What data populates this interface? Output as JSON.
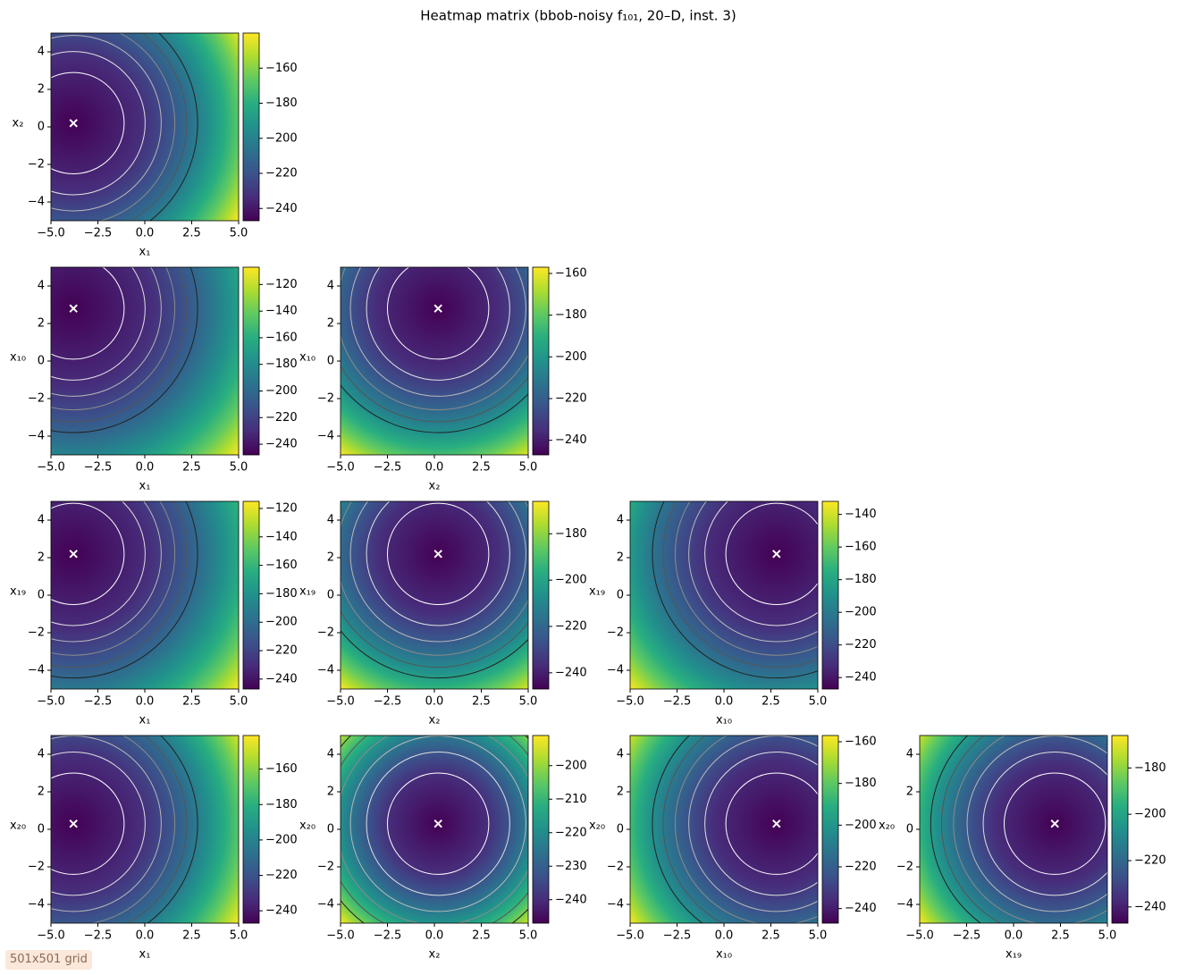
{
  "title": "Heatmap matrix (bbob-noisy f₁₀₁, 20–D, inst. 3)",
  "note": "501x501 grid",
  "chart_data": [
    {
      "type": "heatmap",
      "colormap": "viridis",
      "xlabel": "x₁",
      "ylabel": "x₂",
      "xlim": [
        -5,
        5
      ],
      "ylim": [
        -5,
        5
      ],
      "xticks": [
        {
          "value": -5,
          "label": "−5.0"
        },
        {
          "value": -2.5,
          "label": "−2.5"
        },
        {
          "value": 0,
          "label": "0.0"
        },
        {
          "value": 2.5,
          "label": "2.5"
        },
        {
          "value": 5,
          "label": "5.0"
        }
      ],
      "yticks": [
        {
          "value": -4,
          "label": "−4"
        },
        {
          "value": -2,
          "label": "−2"
        },
        0,
        2,
        4
      ],
      "clim": [
        -247,
        -140
      ],
      "cticks": [
        {
          "value": -240,
          "label": "−240"
        },
        {
          "value": -220,
          "label": "−220"
        },
        {
          "value": -200,
          "label": "−200"
        },
        {
          "value": -180,
          "label": "−180"
        },
        {
          "value": -160,
          "label": "−160"
        }
      ],
      "optimum": [
        -3.8,
        0.2
      ]
    },
    {
      "type": "heatmap",
      "colormap": "viridis",
      "xlabel": "x₁",
      "ylabel": "x₁₀",
      "xlim": [
        -5,
        5
      ],
      "ylim": [
        -5,
        5
      ],
      "xticks": [
        {
          "value": -5,
          "label": "−5.0"
        },
        {
          "value": -2.5,
          "label": "−2.5"
        },
        {
          "value": 0,
          "label": "0.0"
        },
        {
          "value": 2.5,
          "label": "2.5"
        },
        {
          "value": 5,
          "label": "5.0"
        }
      ],
      "yticks": [
        {
          "value": -4,
          "label": "−4"
        },
        {
          "value": -2,
          "label": "−2"
        },
        0,
        2,
        4
      ],
      "clim": [
        -248,
        -107
      ],
      "cticks": [
        {
          "value": -240,
          "label": "−240"
        },
        {
          "value": -220,
          "label": "−220"
        },
        {
          "value": -200,
          "label": "−200"
        },
        {
          "value": -180,
          "label": "−180"
        },
        {
          "value": -160,
          "label": "−160"
        },
        {
          "value": -140,
          "label": "−140"
        },
        {
          "value": -120,
          "label": "−120"
        }
      ],
      "optimum": [
        -3.8,
        2.8
      ]
    },
    {
      "type": "heatmap",
      "colormap": "viridis",
      "xlabel": "x₂",
      "ylabel": "x₁₀",
      "xlim": [
        -5,
        5
      ],
      "ylim": [
        -5,
        5
      ],
      "xticks": [
        {
          "value": -5,
          "label": "−5.0"
        },
        {
          "value": -2.5,
          "label": "−2.5"
        },
        {
          "value": 0,
          "label": "0.0"
        },
        {
          "value": 2.5,
          "label": "2.5"
        },
        {
          "value": 5,
          "label": "5.0"
        }
      ],
      "yticks": [
        {
          "value": -4,
          "label": "−4"
        },
        {
          "value": -2,
          "label": "−2"
        },
        0,
        2,
        4
      ],
      "clim": [
        -247,
        -157
      ],
      "cticks": [
        {
          "value": -240,
          "label": "−240"
        },
        {
          "value": -220,
          "label": "−220"
        },
        {
          "value": -200,
          "label": "−200"
        },
        {
          "value": -180,
          "label": "−180"
        },
        {
          "value": -160,
          "label": "−160"
        }
      ],
      "optimum": [
        0.2,
        2.8
      ]
    },
    {
      "type": "heatmap",
      "colormap": "viridis",
      "xlabel": "x₁",
      "ylabel": "x₁₉",
      "xlim": [
        -5,
        5
      ],
      "ylim": [
        -5,
        5
      ],
      "xticks": [
        {
          "value": -5,
          "label": "−5.0"
        },
        {
          "value": -2.5,
          "label": "−2.5"
        },
        {
          "value": 0,
          "label": "0.0"
        },
        {
          "value": 2.5,
          "label": "2.5"
        },
        {
          "value": 5,
          "label": "5.0"
        }
      ],
      "yticks": [
        {
          "value": -4,
          "label": "−4"
        },
        {
          "value": -2,
          "label": "−2"
        },
        0,
        2,
        4
      ],
      "clim": [
        -247,
        -115
      ],
      "cticks": [
        {
          "value": -240,
          "label": "−240"
        },
        {
          "value": -220,
          "label": "−220"
        },
        {
          "value": -200,
          "label": "−200"
        },
        {
          "value": -180,
          "label": "−180"
        },
        {
          "value": -160,
          "label": "−160"
        },
        {
          "value": -140,
          "label": "−140"
        },
        {
          "value": -120,
          "label": "−120"
        }
      ],
      "optimum": [
        -3.8,
        2.2
      ]
    },
    {
      "type": "heatmap",
      "colormap": "viridis",
      "xlabel": "x₂",
      "ylabel": "x₁₉",
      "xlim": [
        -5,
        5
      ],
      "ylim": [
        -5,
        5
      ],
      "xticks": [
        {
          "value": -5,
          "label": "−5.0"
        },
        {
          "value": -2.5,
          "label": "−2.5"
        },
        {
          "value": 0,
          "label": "0.0"
        },
        {
          "value": 2.5,
          "label": "2.5"
        },
        {
          "value": 5,
          "label": "5.0"
        }
      ],
      "yticks": [
        {
          "value": -4,
          "label": "−4"
        },
        {
          "value": -2,
          "label": "−2"
        },
        0,
        2,
        4
      ],
      "clim": [
        -247,
        -166
      ],
      "cticks": [
        {
          "value": -240,
          "label": "−240"
        },
        {
          "value": -220,
          "label": "−220"
        },
        {
          "value": -200,
          "label": "−200"
        },
        {
          "value": -180,
          "label": "−180"
        }
      ],
      "optimum": [
        0.2,
        2.2
      ]
    },
    {
      "type": "heatmap",
      "colormap": "viridis",
      "xlabel": "x₁₀",
      "ylabel": "x₁₉",
      "xlim": [
        -5,
        5
      ],
      "ylim": [
        -5,
        5
      ],
      "xticks": [
        {
          "value": -5,
          "label": "−5.0"
        },
        {
          "value": -2.5,
          "label": "−2.5"
        },
        {
          "value": 0,
          "label": "0.0"
        },
        {
          "value": 2.5,
          "label": "2.5"
        },
        {
          "value": 5,
          "label": "5.0"
        }
      ],
      "yticks": [
        {
          "value": -4,
          "label": "−4"
        },
        {
          "value": -2,
          "label": "−2"
        },
        0,
        2,
        4
      ],
      "clim": [
        -247,
        -132
      ],
      "cticks": [
        {
          "value": -240,
          "label": "−240"
        },
        {
          "value": -220,
          "label": "−220"
        },
        {
          "value": -200,
          "label": "−200"
        },
        {
          "value": -180,
          "label": "−180"
        },
        {
          "value": -160,
          "label": "−160"
        },
        {
          "value": -140,
          "label": "−140"
        }
      ],
      "optimum": [
        2.8,
        2.2
      ]
    },
    {
      "type": "heatmap",
      "colormap": "viridis",
      "xlabel": "x₁",
      "ylabel": "x₂₀",
      "xlim": [
        -5,
        5
      ],
      "ylim": [
        -5,
        5
      ],
      "xticks": [
        {
          "value": -5,
          "label": "−5.0"
        },
        {
          "value": -2.5,
          "label": "−2.5"
        },
        {
          "value": 0,
          "label": "0.0"
        },
        {
          "value": 2.5,
          "label": "2.5"
        },
        {
          "value": 5,
          "label": "5.0"
        }
      ],
      "yticks": [
        {
          "value": -4,
          "label": "−4"
        },
        {
          "value": -2,
          "label": "−2"
        },
        0,
        2,
        4
      ],
      "clim": [
        -247,
        -141
      ],
      "cticks": [
        {
          "value": -240,
          "label": "−240"
        },
        {
          "value": -220,
          "label": "−220"
        },
        {
          "value": -200,
          "label": "−200"
        },
        {
          "value": -180,
          "label": "−180"
        },
        {
          "value": -160,
          "label": "−160"
        }
      ],
      "optimum": [
        -3.8,
        0.3
      ]
    },
    {
      "type": "heatmap",
      "colormap": "viridis",
      "xlabel": "x₂",
      "ylabel": "x₂₀",
      "xlim": [
        -5,
        5
      ],
      "ylim": [
        -5,
        5
      ],
      "xticks": [
        {
          "value": -5,
          "label": "−5.0"
        },
        {
          "value": -2.5,
          "label": "−2.5"
        },
        {
          "value": 0,
          "label": "0.0"
        },
        {
          "value": 2.5,
          "label": "2.5"
        },
        {
          "value": 5,
          "label": "5.0"
        }
      ],
      "yticks": [
        {
          "value": -4,
          "label": "−4"
        },
        {
          "value": -2,
          "label": "−2"
        },
        0,
        2,
        4
      ],
      "clim": [
        -247,
        -191
      ],
      "cticks": [
        {
          "value": -240,
          "label": "−240"
        },
        {
          "value": -230,
          "label": "−230"
        },
        {
          "value": -220,
          "label": "−220"
        },
        {
          "value": -210,
          "label": "−210"
        },
        {
          "value": -200,
          "label": "−200"
        }
      ],
      "optimum": [
        0.2,
        0.3
      ]
    },
    {
      "type": "heatmap",
      "colormap": "viridis",
      "xlabel": "x₁₀",
      "ylabel": "x₂₀",
      "xlim": [
        -5,
        5
      ],
      "ylim": [
        -5,
        5
      ],
      "xticks": [
        {
          "value": -5,
          "label": "−5.0"
        },
        {
          "value": -2.5,
          "label": "−2.5"
        },
        {
          "value": 0,
          "label": "0.0"
        },
        {
          "value": 2.5,
          "label": "2.5"
        },
        {
          "value": 5,
          "label": "5.0"
        }
      ],
      "yticks": [
        {
          "value": -4,
          "label": "−4"
        },
        {
          "value": -2,
          "label": "−2"
        },
        0,
        2,
        4
      ],
      "clim": [
        -247,
        -157
      ],
      "cticks": [
        {
          "value": -240,
          "label": "−240"
        },
        {
          "value": -220,
          "label": "−220"
        },
        {
          "value": -200,
          "label": "−200"
        },
        {
          "value": -180,
          "label": "−180"
        },
        {
          "value": -160,
          "label": "−160"
        }
      ],
      "optimum": [
        2.8,
        0.3
      ]
    },
    {
      "type": "heatmap",
      "colormap": "viridis",
      "xlabel": "x₁₉",
      "ylabel": "x₂₀",
      "xlim": [
        -5,
        5
      ],
      "ylim": [
        -5,
        5
      ],
      "xticks": [
        {
          "value": -5,
          "label": "−5.0"
        },
        {
          "value": -2.5,
          "label": "−2.5"
        },
        {
          "value": 0,
          "label": "0.0"
        },
        {
          "value": 2.5,
          "label": "2.5"
        },
        {
          "value": 5,
          "label": "5.0"
        }
      ],
      "yticks": [
        {
          "value": -4,
          "label": "−4"
        },
        {
          "value": -2,
          "label": "−2"
        },
        0,
        2,
        4
      ],
      "clim": [
        -247,
        -166
      ],
      "cticks": [
        {
          "value": -240,
          "label": "−240"
        },
        {
          "value": -220,
          "label": "−220"
        },
        {
          "value": -200,
          "label": "−200"
        },
        {
          "value": -180,
          "label": "−180"
        }
      ],
      "optimum": [
        2.2,
        0.3
      ]
    }
  ]
}
